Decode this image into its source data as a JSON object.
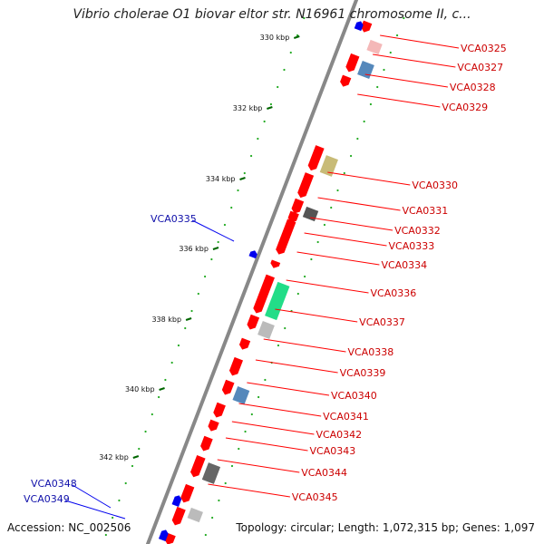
{
  "title": "Vibrio cholerae O1 biovar eltor str. N16961 chromosome II, c...",
  "footer": {
    "accession": "Accession: NC_002506",
    "topology": "Topology: circular; Length: 1,072,315 bp; Genes: 1,097"
  },
  "colors": {
    "forward_gene": "#ff0000",
    "reverse_gene": "#0000ee",
    "forward_label": "#cc0000",
    "reverse_label": "#1010aa",
    "backbone": "#888888",
    "tick_major": "#006600",
    "tick_minor": "#22aa22"
  },
  "ticks": [
    {
      "label": "330 kbp"
    },
    {
      "label": "332 kbp"
    },
    {
      "label": "334 kbp"
    },
    {
      "label": "336 kbp"
    },
    {
      "label": "338 kbp"
    },
    {
      "label": "340 kbp"
    },
    {
      "label": "342 kbp"
    }
  ],
  "gene_labels_right": [
    "VCA0325",
    "VCA0327",
    "VCA0328",
    "VCA0329",
    "VCA0330",
    "VCA0331",
    "VCA0332",
    "VCA0333",
    "VCA0334",
    "VCA0336",
    "VCA0337",
    "VCA0338",
    "VCA0339",
    "VCA0340",
    "VCA0341",
    "VCA0342",
    "VCA0343",
    "VCA0344",
    "VCA0345"
  ],
  "gene_labels_left": [
    "VCA0335",
    "VCA0348",
    "VCA0349"
  ],
  "cog_boxes": [
    {
      "color": "#f4b8b8"
    },
    {
      "color": "#5588bb"
    },
    {
      "color": "#c8bb77"
    },
    {
      "color": "#555555"
    },
    {
      "color": "#22dd88"
    },
    {
      "color": "#bbbbbb"
    },
    {
      "color": "#5588bb"
    },
    {
      "color": "#666666"
    },
    {
      "color": "#bbbbbb"
    }
  ]
}
